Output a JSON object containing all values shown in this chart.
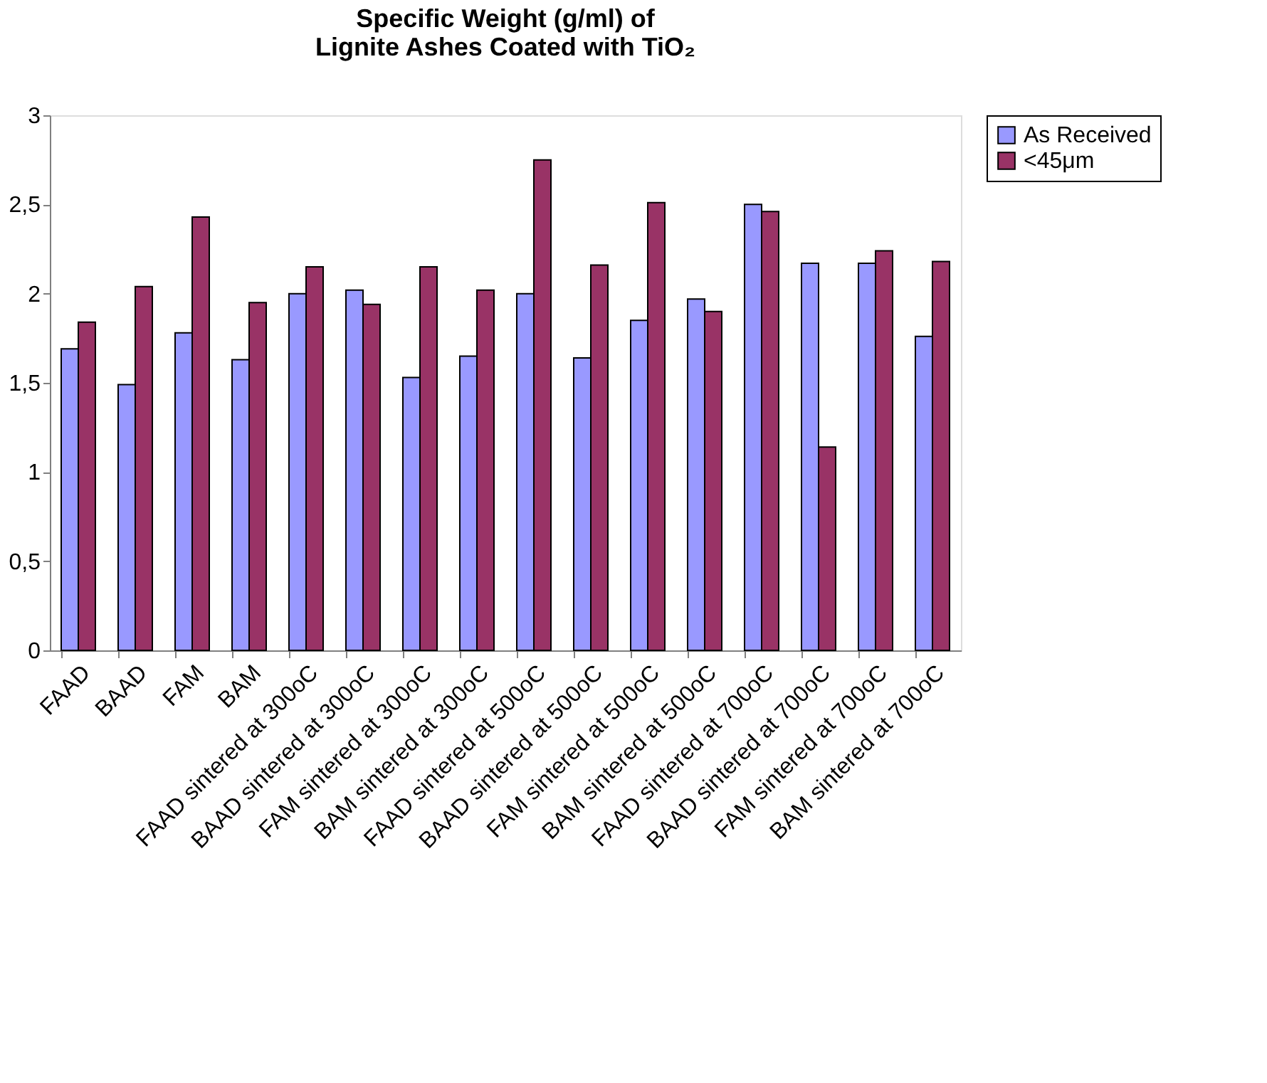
{
  "chart_data": {
    "type": "bar",
    "title": [
      "Specific Weight (g/ml) of",
      "Lignite Ashes Coated with TiO₂"
    ],
    "categories": [
      "FAAD",
      "BAAD",
      "FAM",
      "BAM",
      "FAAD sintered at 300oC",
      "BAAD sintered at 300oC",
      "FAM sintered at 300oC",
      "BAM sintered at 300oC",
      "FAAD sintered at 500oC",
      "BAAD sintered at 500oC",
      "FAM sintered at 500oC",
      "BAM sintered at 500oC",
      "FAAD sintered at 700oC",
      "BAAD sintered at 700oC",
      "FAM sintered at 700oC",
      "BAM sintered at 700oC"
    ],
    "series": [
      {
        "name": "As Received",
        "color": "#9999ff",
        "values": [
          1.69,
          1.49,
          1.78,
          1.63,
          2.0,
          2.02,
          1.53,
          1.65,
          2.0,
          1.64,
          1.85,
          1.97,
          2.5,
          2.17,
          2.17,
          1.76
        ]
      },
      {
        "name": "<45μm",
        "color": "#993366",
        "values": [
          1.84,
          2.04,
          2.43,
          1.95,
          2.15,
          1.94,
          2.15,
          2.02,
          2.75,
          2.16,
          2.51,
          1.9,
          2.46,
          1.14,
          2.24,
          2.18
        ]
      }
    ],
    "ylim": [
      0,
      3
    ],
    "yticks": [
      0,
      {
        "value": 0.5,
        "label": "0,5"
      },
      1,
      {
        "value": 1.5,
        "label": "1,5"
      },
      2,
      {
        "value": 2.5,
        "label": "2,5"
      },
      3
    ],
    "grid": false,
    "legend": "right"
  }
}
